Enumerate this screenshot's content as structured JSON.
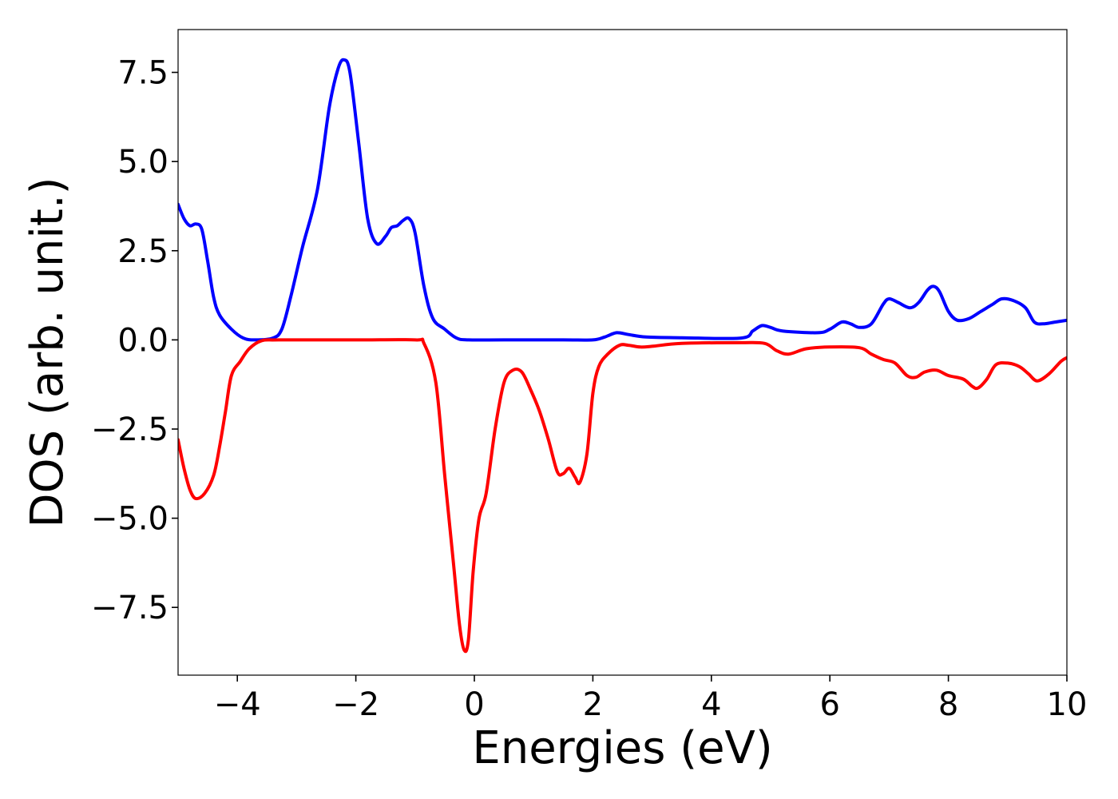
{
  "chart_data": {
    "type": "line",
    "title": "",
    "xlabel": "Energies (eV)",
    "ylabel": "DOS (arb. unit.)",
    "xlim": [
      -5,
      10
    ],
    "ylim": [
      -9.4,
      8.7
    ],
    "grid": false,
    "legend": "none",
    "xticks": [
      {
        "value": -4,
        "label": "−4"
      },
      {
        "value": -2,
        "label": "−2"
      },
      {
        "value": 0,
        "label": "0"
      },
      {
        "value": 2,
        "label": "2"
      },
      {
        "value": 4,
        "label": "4"
      },
      {
        "value": 6,
        "label": "6"
      },
      {
        "value": 8,
        "label": "8"
      },
      {
        "value": 10,
        "label": "10"
      }
    ],
    "yticks": [
      {
        "value": -7.5,
        "label": "−7.5"
      },
      {
        "value": -5.0,
        "label": "−5.0"
      },
      {
        "value": -2.5,
        "label": "−2.5"
      },
      {
        "value": 0.0,
        "label": "0.0"
      },
      {
        "value": 2.5,
        "label": "2.5"
      },
      {
        "value": 5.0,
        "label": "5.0"
      },
      {
        "value": 7.5,
        "label": "7.5"
      }
    ],
    "series": [
      {
        "color": "#0000ff",
        "points": [
          [
            -5.0,
            3.8
          ],
          [
            -4.9,
            3.4
          ],
          [
            -4.8,
            3.2
          ],
          [
            -4.7,
            3.25
          ],
          [
            -4.6,
            3.1
          ],
          [
            -4.5,
            2.2
          ],
          [
            -4.4,
            1.2
          ],
          [
            -4.3,
            0.7
          ],
          [
            -4.1,
            0.3
          ],
          [
            -3.9,
            0.05
          ],
          [
            -3.7,
            0.0
          ],
          [
            -3.4,
            0.05
          ],
          [
            -3.25,
            0.3
          ],
          [
            -3.1,
            1.2
          ],
          [
            -2.9,
            2.6
          ],
          [
            -2.65,
            4.2
          ],
          [
            -2.45,
            6.5
          ],
          [
            -2.3,
            7.6
          ],
          [
            -2.2,
            7.85
          ],
          [
            -2.1,
            7.5
          ],
          [
            -1.95,
            5.5
          ],
          [
            -1.8,
            3.4
          ],
          [
            -1.65,
            2.7
          ],
          [
            -1.5,
            2.9
          ],
          [
            -1.4,
            3.15
          ],
          [
            -1.3,
            3.2
          ],
          [
            -1.2,
            3.35
          ],
          [
            -1.1,
            3.4
          ],
          [
            -1.0,
            3.0
          ],
          [
            -0.85,
            1.5
          ],
          [
            -0.7,
            0.6
          ],
          [
            -0.5,
            0.3
          ],
          [
            -0.3,
            0.05
          ],
          [
            -0.1,
            0.0
          ],
          [
            0.5,
            0.0
          ],
          [
            1.5,
            0.0
          ],
          [
            2.0,
            0.0
          ],
          [
            2.2,
            0.08
          ],
          [
            2.4,
            0.2
          ],
          [
            2.6,
            0.15
          ],
          [
            2.9,
            0.08
          ],
          [
            3.5,
            0.06
          ],
          [
            4.5,
            0.05
          ],
          [
            4.7,
            0.25
          ],
          [
            4.85,
            0.4
          ],
          [
            5.0,
            0.35
          ],
          [
            5.2,
            0.25
          ],
          [
            5.8,
            0.2
          ],
          [
            6.0,
            0.3
          ],
          [
            6.2,
            0.5
          ],
          [
            6.35,
            0.45
          ],
          [
            6.5,
            0.35
          ],
          [
            6.7,
            0.45
          ],
          [
            6.9,
            1.0
          ],
          [
            7.0,
            1.15
          ],
          [
            7.15,
            1.05
          ],
          [
            7.35,
            0.9
          ],
          [
            7.5,
            1.05
          ],
          [
            7.65,
            1.4
          ],
          [
            7.75,
            1.5
          ],
          [
            7.85,
            1.35
          ],
          [
            8.0,
            0.8
          ],
          [
            8.15,
            0.55
          ],
          [
            8.35,
            0.6
          ],
          [
            8.55,
            0.8
          ],
          [
            8.75,
            1.0
          ],
          [
            8.9,
            1.15
          ],
          [
            9.1,
            1.1
          ],
          [
            9.3,
            0.9
          ],
          [
            9.45,
            0.5
          ],
          [
            9.6,
            0.45
          ],
          [
            9.8,
            0.5
          ],
          [
            10.0,
            0.55
          ]
        ]
      },
      {
        "color": "#ff0000",
        "points": [
          [
            -5.0,
            -2.8
          ],
          [
            -4.9,
            -3.6
          ],
          [
            -4.8,
            -4.2
          ],
          [
            -4.7,
            -4.45
          ],
          [
            -4.55,
            -4.3
          ],
          [
            -4.4,
            -3.8
          ],
          [
            -4.3,
            -3.0
          ],
          [
            -4.2,
            -2.0
          ],
          [
            -4.1,
            -1.0
          ],
          [
            -3.95,
            -0.6
          ],
          [
            -3.8,
            -0.25
          ],
          [
            -3.6,
            -0.03
          ],
          [
            -3.3,
            0.0
          ],
          [
            -2.0,
            0.0
          ],
          [
            -1.0,
            0.0
          ],
          [
            -0.85,
            -0.1
          ],
          [
            -0.65,
            -1.2
          ],
          [
            -0.5,
            -3.8
          ],
          [
            -0.35,
            -6.3
          ],
          [
            -0.25,
            -8.0
          ],
          [
            -0.17,
            -8.7
          ],
          [
            -0.1,
            -8.4
          ],
          [
            -0.02,
            -6.5
          ],
          [
            0.08,
            -5.0
          ],
          [
            0.2,
            -4.3
          ],
          [
            0.35,
            -2.5
          ],
          [
            0.5,
            -1.2
          ],
          [
            0.65,
            -0.85
          ],
          [
            0.8,
            -0.9
          ],
          [
            0.95,
            -1.4
          ],
          [
            1.1,
            -2.0
          ],
          [
            1.25,
            -2.8
          ],
          [
            1.4,
            -3.7
          ],
          [
            1.5,
            -3.75
          ],
          [
            1.6,
            -3.6
          ],
          [
            1.7,
            -3.85
          ],
          [
            1.78,
            -4.0
          ],
          [
            1.9,
            -3.2
          ],
          [
            2.0,
            -1.5
          ],
          [
            2.1,
            -0.75
          ],
          [
            2.25,
            -0.4
          ],
          [
            2.45,
            -0.15
          ],
          [
            2.6,
            -0.15
          ],
          [
            2.8,
            -0.2
          ],
          [
            3.0,
            -0.18
          ],
          [
            3.5,
            -0.1
          ],
          [
            4.5,
            -0.08
          ],
          [
            4.9,
            -0.1
          ],
          [
            5.1,
            -0.3
          ],
          [
            5.3,
            -0.4
          ],
          [
            5.6,
            -0.25
          ],
          [
            6.0,
            -0.2
          ],
          [
            6.5,
            -0.22
          ],
          [
            6.7,
            -0.4
          ],
          [
            6.9,
            -0.55
          ],
          [
            7.1,
            -0.65
          ],
          [
            7.3,
            -1.0
          ],
          [
            7.45,
            -1.05
          ],
          [
            7.6,
            -0.9
          ],
          [
            7.8,
            -0.85
          ],
          [
            8.0,
            -1.0
          ],
          [
            8.25,
            -1.1
          ],
          [
            8.4,
            -1.3
          ],
          [
            8.5,
            -1.35
          ],
          [
            8.65,
            -1.1
          ],
          [
            8.8,
            -0.7
          ],
          [
            9.0,
            -0.65
          ],
          [
            9.2,
            -0.75
          ],
          [
            9.35,
            -0.95
          ],
          [
            9.5,
            -1.15
          ],
          [
            9.7,
            -0.95
          ],
          [
            9.9,
            -0.6
          ],
          [
            10.0,
            -0.5
          ]
        ]
      }
    ]
  }
}
